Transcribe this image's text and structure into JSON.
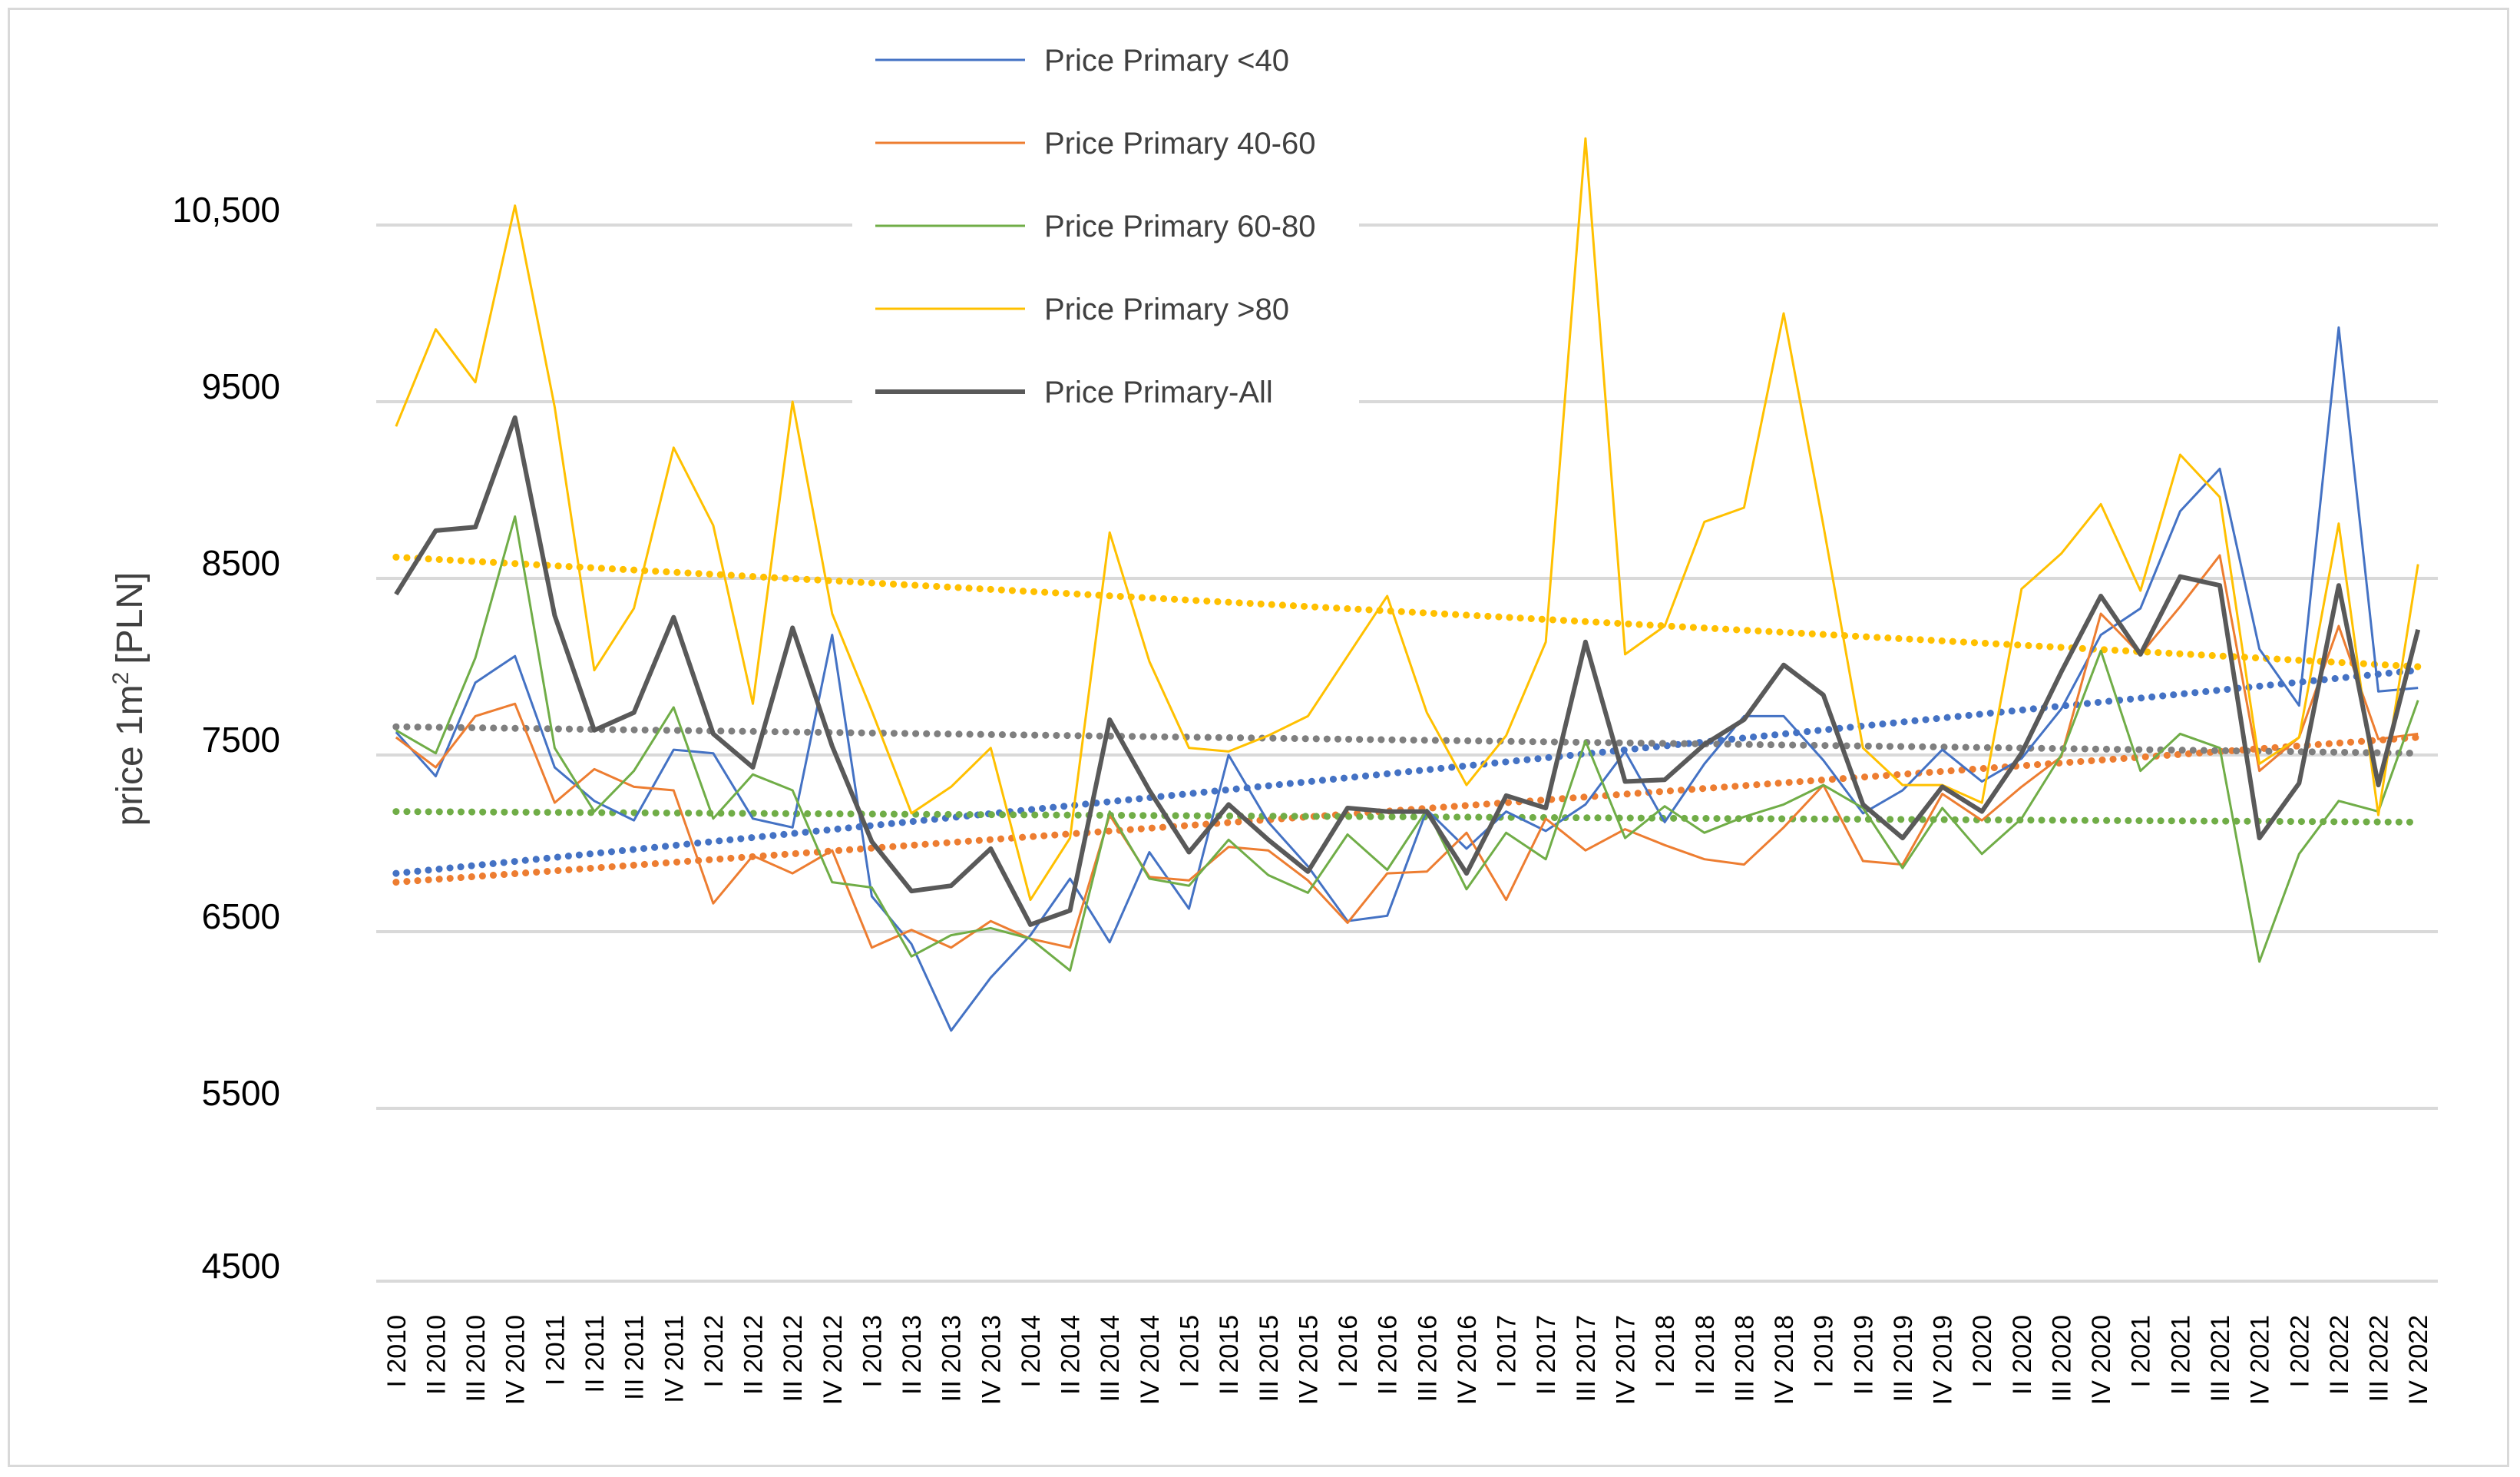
{
  "chart_data": {
    "type": "line",
    "title": "",
    "xlabel": "",
    "ylabel": "price 1m² [PLN]",
    "ylabel_main": "price 1m",
    "ylabel_sup": "2",
    "ylabel_unit": "[PLN]",
    "yticks": [
      {
        "value": 4500,
        "label": "4500"
      },
      {
        "value": 5500,
        "label": "5500"
      },
      {
        "value": 6500,
        "label": "6500"
      },
      {
        "value": 7500,
        "label": "7500"
      },
      {
        "value": 8500,
        "label": "8500"
      },
      {
        "value": 9500,
        "label": "9500"
      },
      {
        "value": 10500,
        "label": "10,500"
      }
    ],
    "gridlines": [
      4500,
      5500,
      6500,
      7500,
      8500,
      9500,
      10500
    ],
    "ylim": [
      4500,
      11200
    ],
    "categories": [
      "I 2010",
      "II 2010",
      "III 2010",
      "IV 2010",
      "I 2011",
      "II 2011",
      "III 2011",
      "IV 2011",
      "I 2012",
      "II 2012",
      "III 2012",
      "IV 2012",
      "I 2013",
      "II 2013",
      "III 2013",
      "IV 2013",
      "I 2014",
      "II 2014",
      "III 2014",
      "IV 2014",
      "I 2015",
      "II 2015",
      "III 2015",
      "IV 2015",
      "I 2016",
      "II 2016",
      "III 2016",
      "IV 2016",
      "I 2017",
      "II 2017",
      "III 2017",
      "IV 2017",
      "I 2018",
      "II 2018",
      "III 2018",
      "IV 2018",
      "I 2019",
      "II 2019",
      "III 2019",
      "IV 2019",
      "I 2020",
      "II 2020",
      "III 2020",
      "IV 2020",
      "I 2021",
      "II 2021",
      "III 2021",
      "IV 2021",
      "I 2022",
      "II 2022",
      "III 2022",
      "IV 2022"
    ],
    "series": [
      {
        "name": "Price Primary <40",
        "color": "#4472C4",
        "width": 3,
        "values": [
          7630,
          7380,
          7910,
          8060,
          7430,
          7240,
          7130,
          7530,
          7510,
          7140,
          7090,
          8180,
          6700,
          6430,
          5940,
          6240,
          6480,
          6800,
          6440,
          6950,
          6630,
          7500,
          7120,
          6870,
          6560,
          6590,
          7190,
          6970,
          7180,
          7070,
          7220,
          7520,
          7120,
          7450,
          7720,
          7720,
          7470,
          7170,
          7300,
          7530,
          7350,
          7480,
          7760,
          8180,
          8330,
          8880,
          9120,
          8100,
          7780,
          9920,
          7860,
          7880
        ]
      },
      {
        "name": "Price Primary 40-60",
        "color": "#ED7D31",
        "width": 3,
        "values": [
          7600,
          7430,
          7720,
          7790,
          7230,
          7420,
          7320,
          7300,
          6660,
          6930,
          6830,
          6960,
          6410,
          6510,
          6410,
          6560,
          6460,
          6410,
          7160,
          6810,
          6790,
          6980,
          6960,
          6790,
          6550,
          6830,
          6840,
          7060,
          6680,
          7140,
          6960,
          7080,
          6990,
          6910,
          6880,
          7090,
          7330,
          6900,
          6880,
          7280,
          7130,
          7320,
          7490,
          8300,
          8070,
          8340,
          8630,
          7410,
          7600,
          8230,
          7590,
          7620
        ]
      },
      {
        "name": "Price Primary 60-80",
        "color": "#70AD47",
        "width": 3,
        "values": [
          7640,
          7510,
          8050,
          8850,
          7540,
          7180,
          7410,
          7770,
          7140,
          7390,
          7300,
          6780,
          6750,
          6360,
          6480,
          6520,
          6460,
          6280,
          7180,
          6800,
          6760,
          7020,
          6820,
          6720,
          7050,
          6850,
          7190,
          6740,
          7060,
          6910,
          7580,
          7030,
          7210,
          7060,
          7150,
          7220,
          7330,
          7200,
          6860,
          7200,
          6940,
          7140,
          7500,
          8090,
          7410,
          7620,
          7540,
          6330,
          6940,
          7240,
          7180,
          7810
        ]
      },
      {
        "name": "Price Primary >80",
        "color": "#FFC000",
        "width": 3,
        "values": [
          9360,
          9910,
          9610,
          10610,
          9470,
          7980,
          8330,
          9240,
          8800,
          7790,
          9500,
          8300,
          7750,
          7170,
          7320,
          7540,
          6680,
          7030,
          8760,
          8030,
          7540,
          7520,
          7610,
          7720,
          8060,
          8400,
          7740,
          7330,
          7610,
          8140,
          10990,
          8070,
          8230,
          8820,
          8900,
          10000,
          8800,
          7540,
          7330,
          7330,
          7230,
          8440,
          8640,
          8920,
          8430,
          9200,
          8960,
          7450,
          7600,
          8810,
          7160,
          8580
        ]
      },
      {
        "name": "Price Primary-All",
        "color": "#595959",
        "width": 6,
        "values": [
          8410,
          8770,
          8790,
          9410,
          8290,
          7640,
          7740,
          8280,
          7620,
          7430,
          8220,
          7550,
          7010,
          6730,
          6760,
          6970,
          6540,
          6620,
          7700,
          7300,
          6950,
          7220,
          7020,
          6840,
          7200,
          7180,
          7180,
          6830,
          7270,
          7200,
          8140,
          7350,
          7360,
          7560,
          7700,
          8010,
          7840,
          7220,
          7030,
          7320,
          7180,
          7510,
          7970,
          8400,
          8070,
          8510,
          8460,
          7030,
          7340,
          8460,
          7330,
          8210
        ]
      }
    ],
    "trendlines": [
      {
        "series": "Price Primary <40",
        "color": "#4472C4",
        "start": 6830,
        "end": 7980
      },
      {
        "series": "Price Primary 40-60",
        "color": "#ED7D31",
        "start": 6780,
        "end": 7600
      },
      {
        "series": "Price Primary 60-80",
        "color": "#70AD47",
        "start": 7180,
        "end": 7120
      },
      {
        "series": "Price Primary >80",
        "color": "#FFC000",
        "start": 8620,
        "end": 8000
      },
      {
        "series": "Price Primary-All",
        "color": "#7F7F7F",
        "start": 7660,
        "end": 7510
      }
    ],
    "legend": {
      "position": "top-center"
    }
  }
}
